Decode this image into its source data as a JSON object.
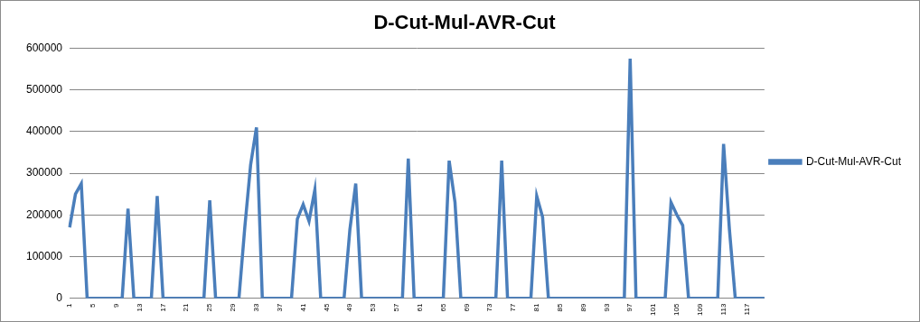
{
  "chart_data": {
    "type": "line",
    "title": "D-Cut-Mul-AVR-Cut",
    "categories": [
      "1",
      null,
      null,
      null,
      "5",
      null,
      null,
      null,
      "9",
      null,
      null,
      null,
      "13",
      null,
      null,
      null,
      "17",
      null,
      null,
      null,
      "21",
      null,
      null,
      null,
      "25",
      null,
      null,
      null,
      "29",
      null,
      null,
      null,
      "33",
      null,
      null,
      null,
      "37",
      null,
      null,
      null,
      "41",
      null,
      null,
      null,
      "45",
      null,
      null,
      null,
      "49",
      null,
      null,
      null,
      "53",
      null,
      null,
      null,
      "57",
      null,
      null,
      null,
      "61",
      null,
      null,
      null,
      "65",
      null,
      null,
      null,
      "69",
      null,
      null,
      null,
      "73",
      null,
      null,
      null,
      "77",
      null,
      null,
      null,
      "81",
      null,
      null,
      null,
      "85",
      null,
      null,
      null,
      "89",
      null,
      null,
      null,
      "93",
      null,
      null,
      null,
      "97",
      null,
      null,
      null,
      "101",
      null,
      null,
      null,
      "105",
      null,
      null,
      null,
      "109",
      null,
      null,
      null,
      "113",
      null,
      null,
      null,
      "117",
      null,
      null,
      null
    ],
    "series": [
      {
        "name": "D-Cut-Mul-AVR-Cut",
        "color": "#4a7ebb",
        "values": [
          170000,
          250000,
          275000,
          0,
          0,
          0,
          0,
          0,
          0,
          0,
          215000,
          0,
          0,
          0,
          0,
          245000,
          0,
          0,
          0,
          0,
          0,
          0,
          0,
          0,
          235000,
          0,
          0,
          0,
          0,
          0,
          170000,
          320000,
          410000,
          0,
          0,
          0,
          0,
          0,
          0,
          190000,
          225000,
          185000,
          260000,
          0,
          0,
          0,
          0,
          0,
          165000,
          275000,
          0,
          0,
          0,
          0,
          0,
          0,
          0,
          0,
          335000,
          0,
          0,
          0,
          0,
          0,
          0,
          330000,
          230000,
          0,
          0,
          0,
          0,
          0,
          0,
          0,
          330000,
          0,
          0,
          0,
          0,
          0,
          245000,
          195000,
          0,
          0,
          0,
          0,
          0,
          0,
          0,
          0,
          0,
          0,
          0,
          0,
          0,
          0,
          575000,
          0,
          0,
          0,
          0,
          0,
          0,
          230000,
          200000,
          175000,
          0,
          0,
          0,
          0,
          0,
          0,
          370000,
          165000,
          0,
          0,
          0,
          0,
          0,
          0
        ]
      }
    ],
    "ylim": [
      0,
      600000
    ],
    "yticks": [
      0,
      100000,
      200000,
      300000,
      400000,
      500000,
      600000
    ],
    "grid": true,
    "legend": "right"
  }
}
